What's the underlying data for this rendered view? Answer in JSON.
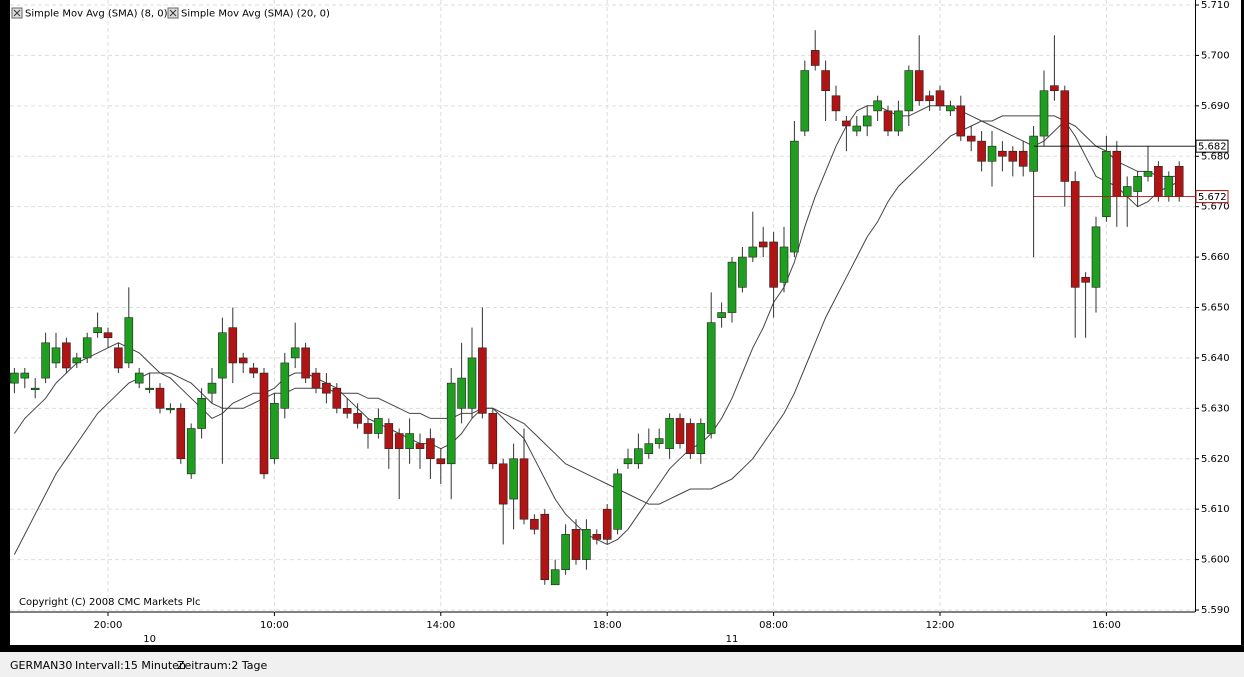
{
  "chart_data": {
    "type": "candlestick",
    "categories": [
      null,
      null,
      null,
      null,
      null,
      null,
      null,
      null,
      null,
      "20:00",
      null,
      null,
      null,
      null,
      null,
      null,
      null,
      null,
      null,
      null,
      null,
      null,
      null,
      null,
      null,
      "10:00",
      null,
      null,
      null,
      null,
      null,
      null,
      null,
      null,
      null,
      null,
      null,
      null,
      null,
      null,
      null,
      "14:00",
      null,
      null,
      null,
      null,
      null,
      null,
      null,
      null,
      null,
      null,
      null,
      null,
      null,
      null,
      null,
      "18:00",
      null,
      null,
      null,
      null,
      null,
      null,
      null,
      null,
      null,
      null,
      null,
      null,
      null,
      null,
      null,
      "08:00",
      null,
      null,
      null,
      null,
      null,
      null,
      null,
      null,
      null,
      null,
      null,
      null,
      null,
      null,
      null,
      "12:00",
      null,
      null,
      null,
      null,
      null,
      null,
      null,
      null,
      null,
      null,
      null,
      null,
      null,
      null,
      null,
      "16:00",
      null,
      null,
      null,
      null,
      null,
      null,
      null
    ],
    "day_labels": [
      null,
      null,
      null,
      null,
      null,
      null,
      null,
      null,
      null,
      null,
      null,
      null,
      null,
      "10",
      null,
      null,
      null,
      null,
      null,
      null,
      null,
      null,
      null,
      null,
      null,
      null,
      null,
      null,
      null,
      null,
      null,
      null,
      null,
      null,
      null,
      null,
      null,
      null,
      null,
      null,
      null,
      null,
      null,
      null,
      null,
      null,
      null,
      null,
      null,
      null,
      null,
      null,
      null,
      null,
      null,
      null,
      null,
      null,
      null,
      null,
      null,
      null,
      null,
      null,
      null,
      null,
      null,
      null,
      null,
      "11",
      null,
      null,
      null,
      null,
      null,
      null,
      null,
      null,
      null,
      null,
      null,
      null,
      null,
      null,
      null,
      null,
      null,
      null,
      null,
      null,
      null,
      null,
      null,
      null,
      null,
      null,
      null,
      null,
      null,
      null,
      null,
      null,
      null,
      null,
      null,
      null,
      null,
      null,
      null,
      null,
      null,
      null,
      null
    ],
    "open": [
      5.635,
      5.636,
      5.634,
      5.636,
      5.639,
      5.643,
      5.639,
      5.64,
      5.645,
      5.645,
      5.642,
      5.639,
      5.635,
      5.634,
      5.634,
      5.63,
      5.63,
      5.617,
      5.626,
      5.633,
      5.636,
      5.646,
      5.64,
      5.638,
      5.637,
      5.62,
      5.63,
      5.64,
      5.642,
      5.637,
      5.635,
      5.634,
      5.63,
      5.629,
      5.627,
      5.625,
      5.627,
      5.625,
      5.622,
      5.623,
      5.624,
      5.62,
      5.619,
      5.63,
      5.63,
      5.642,
      5.629,
      5.619,
      5.612,
      5.62,
      5.608,
      5.609,
      5.595,
      5.598,
      5.606,
      5.6,
      5.605,
      5.61,
      5.606,
      5.619,
      5.619,
      5.621,
      5.623,
      5.622,
      5.628,
      5.627,
      5.621,
      5.625,
      5.648,
      5.649,
      5.654,
      5.66,
      5.663,
      5.663,
      5.655,
      5.661,
      5.685,
      5.701,
      5.697,
      5.692,
      5.687,
      5.685,
      5.686,
      5.689,
      5.689,
      5.685,
      5.689,
      5.697,
      5.692,
      5.693,
      5.689,
      5.69,
      5.684,
      5.683,
      5.679,
      5.681,
      5.681,
      5.681,
      5.677,
      5.684,
      5.694,
      5.693,
      5.675,
      5.656,
      5.654,
      5.668,
      5.681,
      5.672,
      5.673,
      5.676,
      5.678,
      5.672,
      5.678
    ],
    "high": [
      5.638,
      5.638,
      5.636,
      5.645,
      5.645,
      5.644,
      5.641,
      5.645,
      5.649,
      5.646,
      5.643,
      5.654,
      5.638,
      5.637,
      5.635,
      5.631,
      5.631,
      5.627,
      5.634,
      5.638,
      5.648,
      5.65,
      5.641,
      5.639,
      5.638,
      5.633,
      5.641,
      5.647,
      5.643,
      5.638,
      5.637,
      5.635,
      5.632,
      5.631,
      5.628,
      5.63,
      5.628,
      5.626,
      5.628,
      5.625,
      5.626,
      5.622,
      5.638,
      5.643,
      5.646,
      5.65,
      5.63,
      5.62,
      5.623,
      5.626,
      5.609,
      5.61,
      5.6,
      5.607,
      5.608,
      5.608,
      5.606,
      5.611,
      5.618,
      5.622,
      5.625,
      5.626,
      5.626,
      5.629,
      5.629,
      5.628,
      5.628,
      5.653,
      5.651,
      5.66,
      5.662,
      5.669,
      5.666,
      5.665,
      5.666,
      5.687,
      5.699,
      5.705,
      5.699,
      5.694,
      5.688,
      5.688,
      5.69,
      5.692,
      5.69,
      5.691,
      5.698,
      5.704,
      5.693,
      5.694,
      5.691,
      5.692,
      5.686,
      5.685,
      5.685,
      5.683,
      5.682,
      5.683,
      5.686,
      5.697,
      5.704,
      5.694,
      5.677,
      5.657,
      5.668,
      5.684,
      5.683,
      5.676,
      5.677,
      5.682,
      5.679,
      5.677,
      5.679
    ],
    "low": [
      5.633,
      5.634,
      5.632,
      5.635,
      5.638,
      5.637,
      5.638,
      5.639,
      5.644,
      5.642,
      5.637,
      5.638,
      5.634,
      5.633,
      5.629,
      5.629,
      5.619,
      5.616,
      5.624,
      5.631,
      5.619,
      5.635,
      5.637,
      5.636,
      5.616,
      5.619,
      5.628,
      5.638,
      5.635,
      5.633,
      5.631,
      5.629,
      5.628,
      5.626,
      5.622,
      5.624,
      5.618,
      5.612,
      5.619,
      5.618,
      5.616,
      5.615,
      5.612,
      5.627,
      5.628,
      5.628,
      5.618,
      5.603,
      5.606,
      5.607,
      5.605,
      5.595,
      5.595,
      5.597,
      5.599,
      5.598,
      5.603,
      5.603,
      5.605,
      5.618,
      5.618,
      5.62,
      5.622,
      5.62,
      5.622,
      5.62,
      5.619,
      5.624,
      5.646,
      5.647,
      5.653,
      5.659,
      5.66,
      5.648,
      5.653,
      5.66,
      5.684,
      5.697,
      5.687,
      5.687,
      5.681,
      5.684,
      5.684,
      5.687,
      5.684,
      5.684,
      5.686,
      5.69,
      5.689,
      5.689,
      5.688,
      5.683,
      5.681,
      5.677,
      5.674,
      5.677,
      5.676,
      5.676,
      5.66,
      5.682,
      5.691,
      5.67,
      5.644,
      5.644,
      5.649,
      5.667,
      5.666,
      5.666,
      5.67,
      5.675,
      5.671,
      5.671,
      5.671
    ],
    "close": [
      5.637,
      5.637,
      5.634,
      5.643,
      5.642,
      5.638,
      5.64,
      5.644,
      5.646,
      5.644,
      5.638,
      5.648,
      5.637,
      5.634,
      5.63,
      5.63,
      5.62,
      5.626,
      5.632,
      5.635,
      5.645,
      5.639,
      5.639,
      5.637,
      5.617,
      5.631,
      5.639,
      5.642,
      5.636,
      5.634,
      5.633,
      5.63,
      5.629,
      5.627,
      5.625,
      5.628,
      5.622,
      5.622,
      5.625,
      5.622,
      5.62,
      5.619,
      5.635,
      5.636,
      5.64,
      5.629,
      5.619,
      5.611,
      5.62,
      5.608,
      5.606,
      5.596,
      5.598,
      5.605,
      5.6,
      5.606,
      5.604,
      5.604,
      5.617,
      5.62,
      5.622,
      5.623,
      5.624,
      5.628,
      5.623,
      5.621,
      5.627,
      5.647,
      5.649,
      5.659,
      5.66,
      5.662,
      5.662,
      5.654,
      5.662,
      5.683,
      5.697,
      5.698,
      5.693,
      5.689,
      5.686,
      5.686,
      5.688,
      5.691,
      5.685,
      5.689,
      5.697,
      5.691,
      5.691,
      5.69,
      5.69,
      5.684,
      5.683,
      5.679,
      5.682,
      5.68,
      5.679,
      5.678,
      5.684,
      5.693,
      5.693,
      5.675,
      5.654,
      5.655,
      5.666,
      5.681,
      5.672,
      5.674,
      5.676,
      5.677,
      5.672,
      5.676,
      5.672
    ],
    "up_color": "#1f9e1f",
    "down_color": "#b01414",
    "series": [
      {
        "name": "Simple Mov Avg (SMA) (8, 0)",
        "color": "#444444",
        "values": [
          5.625,
          5.628,
          5.63,
          5.632,
          5.635,
          5.637,
          5.639,
          5.64,
          5.641,
          5.642,
          5.643,
          5.642,
          5.641,
          5.639,
          5.637,
          5.636,
          5.634,
          5.632,
          5.63,
          5.628,
          5.629,
          5.631,
          5.632,
          5.633,
          5.633,
          5.634,
          5.636,
          5.637,
          5.637,
          5.636,
          5.635,
          5.634,
          5.632,
          5.63,
          5.628,
          5.627,
          5.626,
          5.625,
          5.624,
          5.623,
          5.623,
          5.622,
          5.623,
          5.625,
          5.628,
          5.63,
          5.63,
          5.628,
          5.626,
          5.624,
          5.62,
          5.616,
          5.612,
          5.609,
          5.607,
          5.605,
          5.604,
          5.603,
          5.604,
          5.606,
          5.609,
          5.612,
          5.615,
          5.618,
          5.62,
          5.622,
          5.623,
          5.625,
          5.628,
          5.632,
          5.637,
          5.642,
          5.646,
          5.651,
          5.654,
          5.659,
          5.666,
          5.672,
          5.677,
          5.682,
          5.686,
          5.689,
          5.69,
          5.69,
          5.689,
          5.688,
          5.688,
          5.689,
          5.69,
          5.69,
          5.69,
          5.689,
          5.688,
          5.687,
          5.686,
          5.685,
          5.684,
          5.683,
          5.682,
          5.683,
          5.685,
          5.687,
          5.684,
          5.68,
          5.676,
          5.675,
          5.674,
          5.672,
          5.67,
          5.671,
          5.673,
          5.674,
          5.675
        ]
      },
      {
        "name": "Simple Mov Avg (SMA) (20, 0)",
        "color": "#444444",
        "values": [
          5.601,
          5.605,
          5.609,
          5.613,
          5.617,
          5.62,
          5.623,
          5.626,
          5.629,
          5.631,
          5.633,
          5.635,
          5.636,
          5.637,
          5.637,
          5.637,
          5.636,
          5.635,
          5.633,
          5.631,
          5.63,
          5.63,
          5.63,
          5.631,
          5.632,
          5.633,
          5.633,
          5.634,
          5.634,
          5.634,
          5.634,
          5.633,
          5.633,
          5.633,
          5.632,
          5.632,
          5.631,
          5.63,
          5.629,
          5.629,
          5.628,
          5.628,
          5.628,
          5.629,
          5.629,
          5.63,
          5.63,
          5.629,
          5.628,
          5.627,
          5.625,
          5.623,
          5.621,
          5.619,
          5.618,
          5.617,
          5.616,
          5.615,
          5.614,
          5.613,
          5.612,
          5.611,
          5.611,
          5.612,
          5.613,
          5.614,
          5.614,
          5.614,
          5.615,
          5.616,
          5.618,
          5.62,
          5.623,
          5.626,
          5.629,
          5.633,
          5.638,
          5.643,
          5.648,
          5.652,
          5.656,
          5.66,
          5.664,
          5.667,
          5.671,
          5.674,
          5.676,
          5.678,
          5.68,
          5.682,
          5.684,
          5.685,
          5.686,
          5.687,
          5.687,
          5.688,
          5.688,
          5.688,
          5.688,
          5.688,
          5.688,
          5.687,
          5.686,
          5.684,
          5.682,
          5.681,
          5.679,
          5.678,
          5.677,
          5.677,
          5.676,
          5.676,
          5.676
        ]
      }
    ],
    "ylim": [
      5.59,
      5.71
    ],
    "yticks": [
      {
        "value": 5.59,
        "label": "5.590"
      },
      {
        "value": 5.6,
        "label": "5.600"
      },
      {
        "value": 5.61,
        "label": "5.610"
      },
      {
        "value": 5.62,
        "label": "5.620"
      },
      {
        "value": 5.63,
        "label": "5.630"
      },
      {
        "value": 5.64,
        "label": "5.640"
      },
      {
        "value": 5.65,
        "label": "5.650"
      },
      {
        "value": 5.66,
        "label": "5.660"
      },
      {
        "value": 5.67,
        "label": "5.670"
      },
      {
        "value": 5.68,
        "label": "5.680"
      },
      {
        "value": 5.69,
        "label": "5.690"
      },
      {
        "value": 5.7,
        "label": "5.700"
      },
      {
        "value": 5.71,
        "label": "5.710"
      }
    ],
    "price_lines": [
      {
        "value": 5.682,
        "color": "#000000"
      },
      {
        "value": 5.672,
        "color": "#b01414"
      }
    ],
    "grid": true,
    "legend": "top-left",
    "annotation": "Copyright (C) 2008 CMC Markets Plc"
  },
  "footer": {
    "symbol": "GERMAN30",
    "interval": "Intervall:15 Minuten",
    "range": "Zeitraum:2 Tage"
  }
}
